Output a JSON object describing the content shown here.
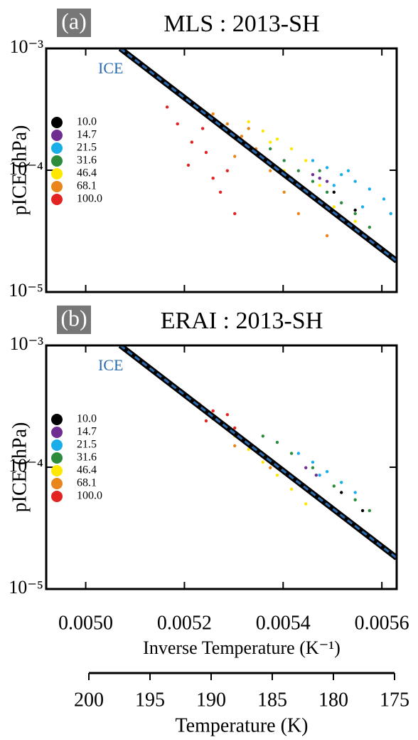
{
  "chart_data": [
    {
      "type": "scatter",
      "panel_label": "(a)",
      "title": "MLS : 2013-SH",
      "ylabel": "pICE (hPa)",
      "yscale": "log",
      "ylim": [
        1e-05,
        0.001
      ],
      "yticks": [
        {
          "value": 0.001,
          "label": "10⁻³"
        },
        {
          "value": 0.0001,
          "label": "10⁻⁴"
        },
        {
          "value": 1e-05,
          "label": "10⁻⁵"
        }
      ],
      "xlim": [
        0.00492,
        0.00563
      ],
      "ice_line": {
        "label": "ICE",
        "color": "#2b6cb0",
        "x": [
          0.00507,
          0.00563
        ],
        "y": [
          0.001,
          1.8e-05
        ]
      },
      "series": [
        {
          "name": "10.0",
          "color": "#000000",
          "x": [
            0.005503,
            0.005546
          ],
          "values": [
            6.6e-05,
            4.7e-05
          ]
        },
        {
          "name": "14.7",
          "color": "#6f2c91",
          "x": [
            0.005474,
            0.005489,
            0.00546
          ],
          "values": [
            8.6e-05,
            8.1e-05,
            9.2e-05
          ]
        },
        {
          "name": "21.5",
          "color": "#1aaee8",
          "x": [
            0.00546,
            0.005489,
            0.005518,
            0.005546,
            0.005575,
            0.005604,
            0.005503,
            0.005561,
            0.005618,
            0.005532
          ],
          "values": [
            0.00012,
            0.000105,
            9.2e-05,
            8.1e-05,
            7e-05,
            5.8e-05,
            7.5e-05,
            5e-05,
            4.4e-05,
            9.9e-05
          ]
        },
        {
          "name": "31.6",
          "color": "#2c8c3c",
          "x": [
            0.005374,
            0.005402,
            0.005431,
            0.00546,
            0.005489,
            0.005518,
            0.005546,
            0.005474,
            0.005575,
            0.005417
          ],
          "values": [
            0.00015,
            0.00012,
            9.9e-05,
            8.1e-05,
            6.6e-05,
            5.4e-05,
            4.4e-05,
            9.9e-05,
            3.4e-05,
            8.6e-05
          ]
        },
        {
          "name": "46.4",
          "color": "#ffe800",
          "x": [
            0.00533,
            0.005359,
            0.005388,
            0.005417,
            0.005446,
            0.005402,
            0.005474,
            0.005503,
            0.005374,
            0.005546
          ],
          "values": [
            0.00025,
            0.00021,
            0.00018,
            0.00015,
            0.00012,
            9.9e-05,
            7.5e-05,
            5e-05,
            0.00017,
            3.8e-05
          ]
        },
        {
          "name": "68.1",
          "color": "#e8861c",
          "x": [
            0.005258,
            0.005287,
            0.005316,
            0.005345,
            0.005302,
            0.005374,
            0.005402,
            0.005431,
            0.00533,
            0.005489
          ],
          "values": [
            0.00029,
            0.00024,
            0.00019,
            0.00015,
            0.00013,
            9.9e-05,
            6.6e-05,
            4.4e-05,
            0.00022,
            2.9e-05
          ]
        },
        {
          "name": "100.0",
          "color": "#e32222",
          "x": [
            0.005165,
            0.005186,
            0.005215,
            0.005244,
            0.005258,
            0.005287,
            0.005208,
            0.005302,
            0.005237,
            0.005273
          ],
          "values": [
            0.00033,
            0.00024,
            0.00017,
            0.00014,
            8.6e-05,
            9.9e-05,
            0.00011,
            4.4e-05,
            0.00022,
            6.6e-05
          ]
        }
      ]
    },
    {
      "type": "scatter",
      "panel_label": "(b)",
      "title": "ERAI : 2013-SH",
      "ylabel": "pICE (hPa)",
      "xlabel": "Inverse Temperature (K⁻¹)",
      "yscale": "log",
      "ylim": [
        1e-05,
        0.001
      ],
      "yticks": [
        {
          "value": 0.001,
          "label": "10⁻³"
        },
        {
          "value": 0.0001,
          "label": "10⁻⁴"
        },
        {
          "value": 1e-05,
          "label": "10⁻⁵"
        }
      ],
      "xlim": [
        0.00492,
        0.00563
      ],
      "xticks": [
        {
          "value": 0.005,
          "label": "0.0050"
        },
        {
          "value": 0.0052,
          "label": "0.0052"
        },
        {
          "value": 0.0054,
          "label": "0.0054"
        },
        {
          "value": 0.0056,
          "label": "0.0056"
        }
      ],
      "ice_line": {
        "label": "ICE",
        "color": "#2b6cb0",
        "x": [
          0.00507,
          0.00563
        ],
        "y": [
          0.001,
          1.8e-05
        ]
      },
      "series": [
        {
          "name": "10.0",
          "color": "#000000",
          "x": [
            0.005518,
            0.005561
          ],
          "values": [
            6.2e-05,
            4.4e-05
          ]
        },
        {
          "name": "14.7",
          "color": "#6f2c91",
          "x": [
            0.005446,
            0.005467
          ],
          "values": [
            9.9e-05,
            8.6e-05
          ]
        },
        {
          "name": "21.5",
          "color": "#1aaee8",
          "x": [
            0.005431,
            0.00546,
            0.005489,
            0.005518,
            0.005546,
            0.005474
          ],
          "values": [
            0.00013,
            0.00011,
            9.2e-05,
            7.5e-05,
            6.2e-05,
            8.6e-05
          ]
        },
        {
          "name": "31.6",
          "color": "#2c8c3c",
          "x": [
            0.005359,
            0.005388,
            0.005417,
            0.00546,
            0.005503,
            0.005546,
            0.005575
          ],
          "values": [
            0.00018,
            0.00016,
            0.00013,
            9.9e-05,
            7e-05,
            5.4e-05,
            4.4e-05
          ]
        },
        {
          "name": "46.4",
          "color": "#ffe800",
          "x": [
            0.005302,
            0.00533,
            0.005359,
            0.005388,
            0.005417,
            0.005446
          ],
          "values": [
            0.00018,
            0.00014,
            0.00011,
            8.6e-05,
            6.6e-05,
            5e-05
          ]
        },
        {
          "name": "68.1",
          "color": "#e8861c",
          "x": [
            0.005258,
            0.005287,
            0.005316,
            0.005345,
            0.005374,
            0.005302
          ],
          "values": [
            0.00025,
            0.00021,
            0.00017,
            0.00014,
            9.9e-05,
            0.00015
          ]
        },
        {
          "name": "100.0",
          "color": "#e32222",
          "x": [
            0.005208,
            0.00523,
            0.005258,
            0.005287,
            0.005244,
            0.005302
          ],
          "values": [
            0.00038,
            0.00033,
            0.00029,
            0.00027,
            0.00024,
            0.00021
          ]
        }
      ]
    },
    {
      "type": "axis",
      "xlabel": "Temperature (K)",
      "xlim": [
        200,
        175
      ],
      "xticks": [
        200,
        195,
        190,
        185,
        180,
        175
      ]
    }
  ]
}
